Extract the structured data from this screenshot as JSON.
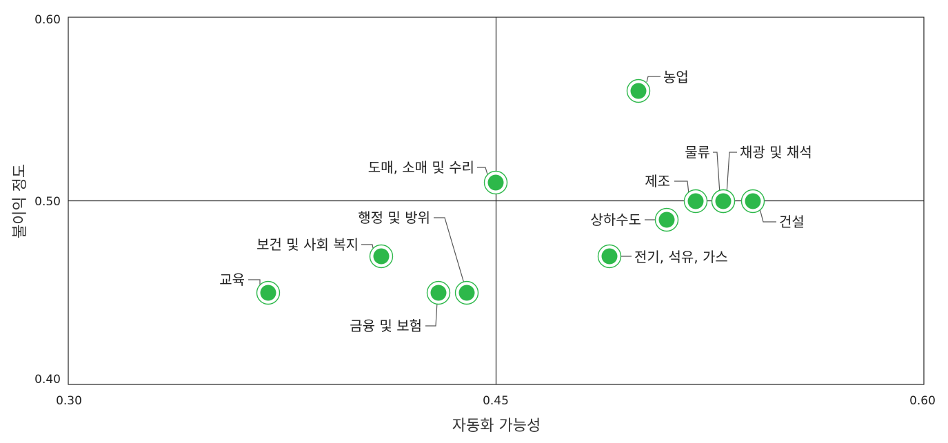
{
  "chart_data": {
    "type": "scatter",
    "xlabel": "자동화 가능성",
    "ylabel": "불이익 정도",
    "xlim": [
      0.3,
      0.6
    ],
    "ylim": [
      0.4,
      0.6
    ],
    "x_ticks": [
      "0.30",
      "0.45",
      "0.60"
    ],
    "y_ticks": [
      "0.40",
      "0.50",
      "0.60"
    ],
    "quadrant_lines": {
      "x": 0.45,
      "y": 0.5
    },
    "grid": false,
    "legend": "none",
    "marker_color": "#2db84a",
    "points": [
      {
        "label": "농업",
        "x": 0.5,
        "y": 0.56
      },
      {
        "label": "도매, 소매 및 수리",
        "x": 0.45,
        "y": 0.51
      },
      {
        "label": "제조",
        "x": 0.52,
        "y": 0.5
      },
      {
        "label": "물류",
        "x": 0.53,
        "y": 0.5
      },
      {
        "label": "채광 및 채석",
        "x": 0.53,
        "y": 0.5
      },
      {
        "label": "건설",
        "x": 0.54,
        "y": 0.5
      },
      {
        "label": "상하수도",
        "x": 0.51,
        "y": 0.49
      },
      {
        "label": "전기, 석유, 가스",
        "x": 0.49,
        "y": 0.47
      },
      {
        "label": "행정 및 방위",
        "x": 0.44,
        "y": 0.45
      },
      {
        "label": "보건 및 사회 복지",
        "x": 0.41,
        "y": 0.47
      },
      {
        "label": "교육",
        "x": 0.37,
        "y": 0.45
      },
      {
        "label": "금융 및 보험",
        "x": 0.43,
        "y": 0.45
      }
    ]
  }
}
